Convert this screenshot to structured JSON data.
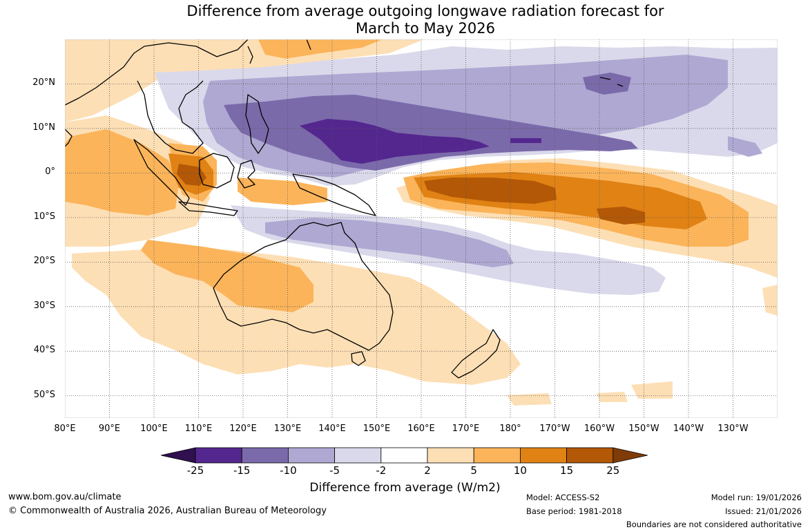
{
  "title": {
    "line1": "Difference from average outgoing longwave radiation forecast for",
    "line2": "March to May 2026"
  },
  "map": {
    "lon_range": [
      80,
      240
    ],
    "lat_range": [
      30,
      -55
    ],
    "lat_ticks": [
      {
        "value": 20,
        "label": "20°N"
      },
      {
        "value": 10,
        "label": "10°N"
      },
      {
        "value": 0,
        "label": "0°"
      },
      {
        "value": -10,
        "label": "10°S"
      },
      {
        "value": -20,
        "label": "20°S"
      },
      {
        "value": -30,
        "label": "30°S"
      },
      {
        "value": -40,
        "label": "40°S"
      },
      {
        "value": -50,
        "label": "50°S"
      }
    ],
    "lon_ticks": [
      {
        "value": 80,
        "label": "80°E"
      },
      {
        "value": 90,
        "label": "90°E"
      },
      {
        "value": 100,
        "label": "100°E"
      },
      {
        "value": 110,
        "label": "110°E"
      },
      {
        "value": 120,
        "label": "120°E"
      },
      {
        "value": 130,
        "label": "130°E"
      },
      {
        "value": 140,
        "label": "140°E"
      },
      {
        "value": 150,
        "label": "150°E"
      },
      {
        "value": 160,
        "label": "160°E"
      },
      {
        "value": 170,
        "label": "170°E"
      },
      {
        "value": 180,
        "label": "180°"
      },
      {
        "value": 190,
        "label": "170°W"
      },
      {
        "value": 200,
        "label": "160°W"
      },
      {
        "value": 210,
        "label": "150°W"
      },
      {
        "value": 220,
        "label": "140°W"
      },
      {
        "value": 230,
        "label": "130°W"
      }
    ]
  },
  "legend": {
    "labels": [
      "-25",
      "-15",
      "-10",
      "-5",
      "-2",
      "2",
      "5",
      "10",
      "15",
      "25"
    ],
    "colors": [
      "#30104f",
      "#54278f",
      "#7b6aaa",
      "#aea8d2",
      "#dad9eb",
      "#ffffff",
      "#fddfb5",
      "#fbb45a",
      "#e08214",
      "#b35806",
      "#7f3b08"
    ],
    "title": "Difference from average (W/m2)"
  },
  "footer": {
    "url": "www.bom.gov.au/climate",
    "copyright": "© Commonwealth of Australia 2026, Australian Bureau of Meteorology",
    "model": "Model: ACCESS-S2",
    "base_period": "Base period: 1981-2018",
    "model_run": "Model run: 19/01/2026",
    "issued": "Issued: 21/01/2026",
    "disclaimer": "Boundaries are not considered authoritative"
  }
}
